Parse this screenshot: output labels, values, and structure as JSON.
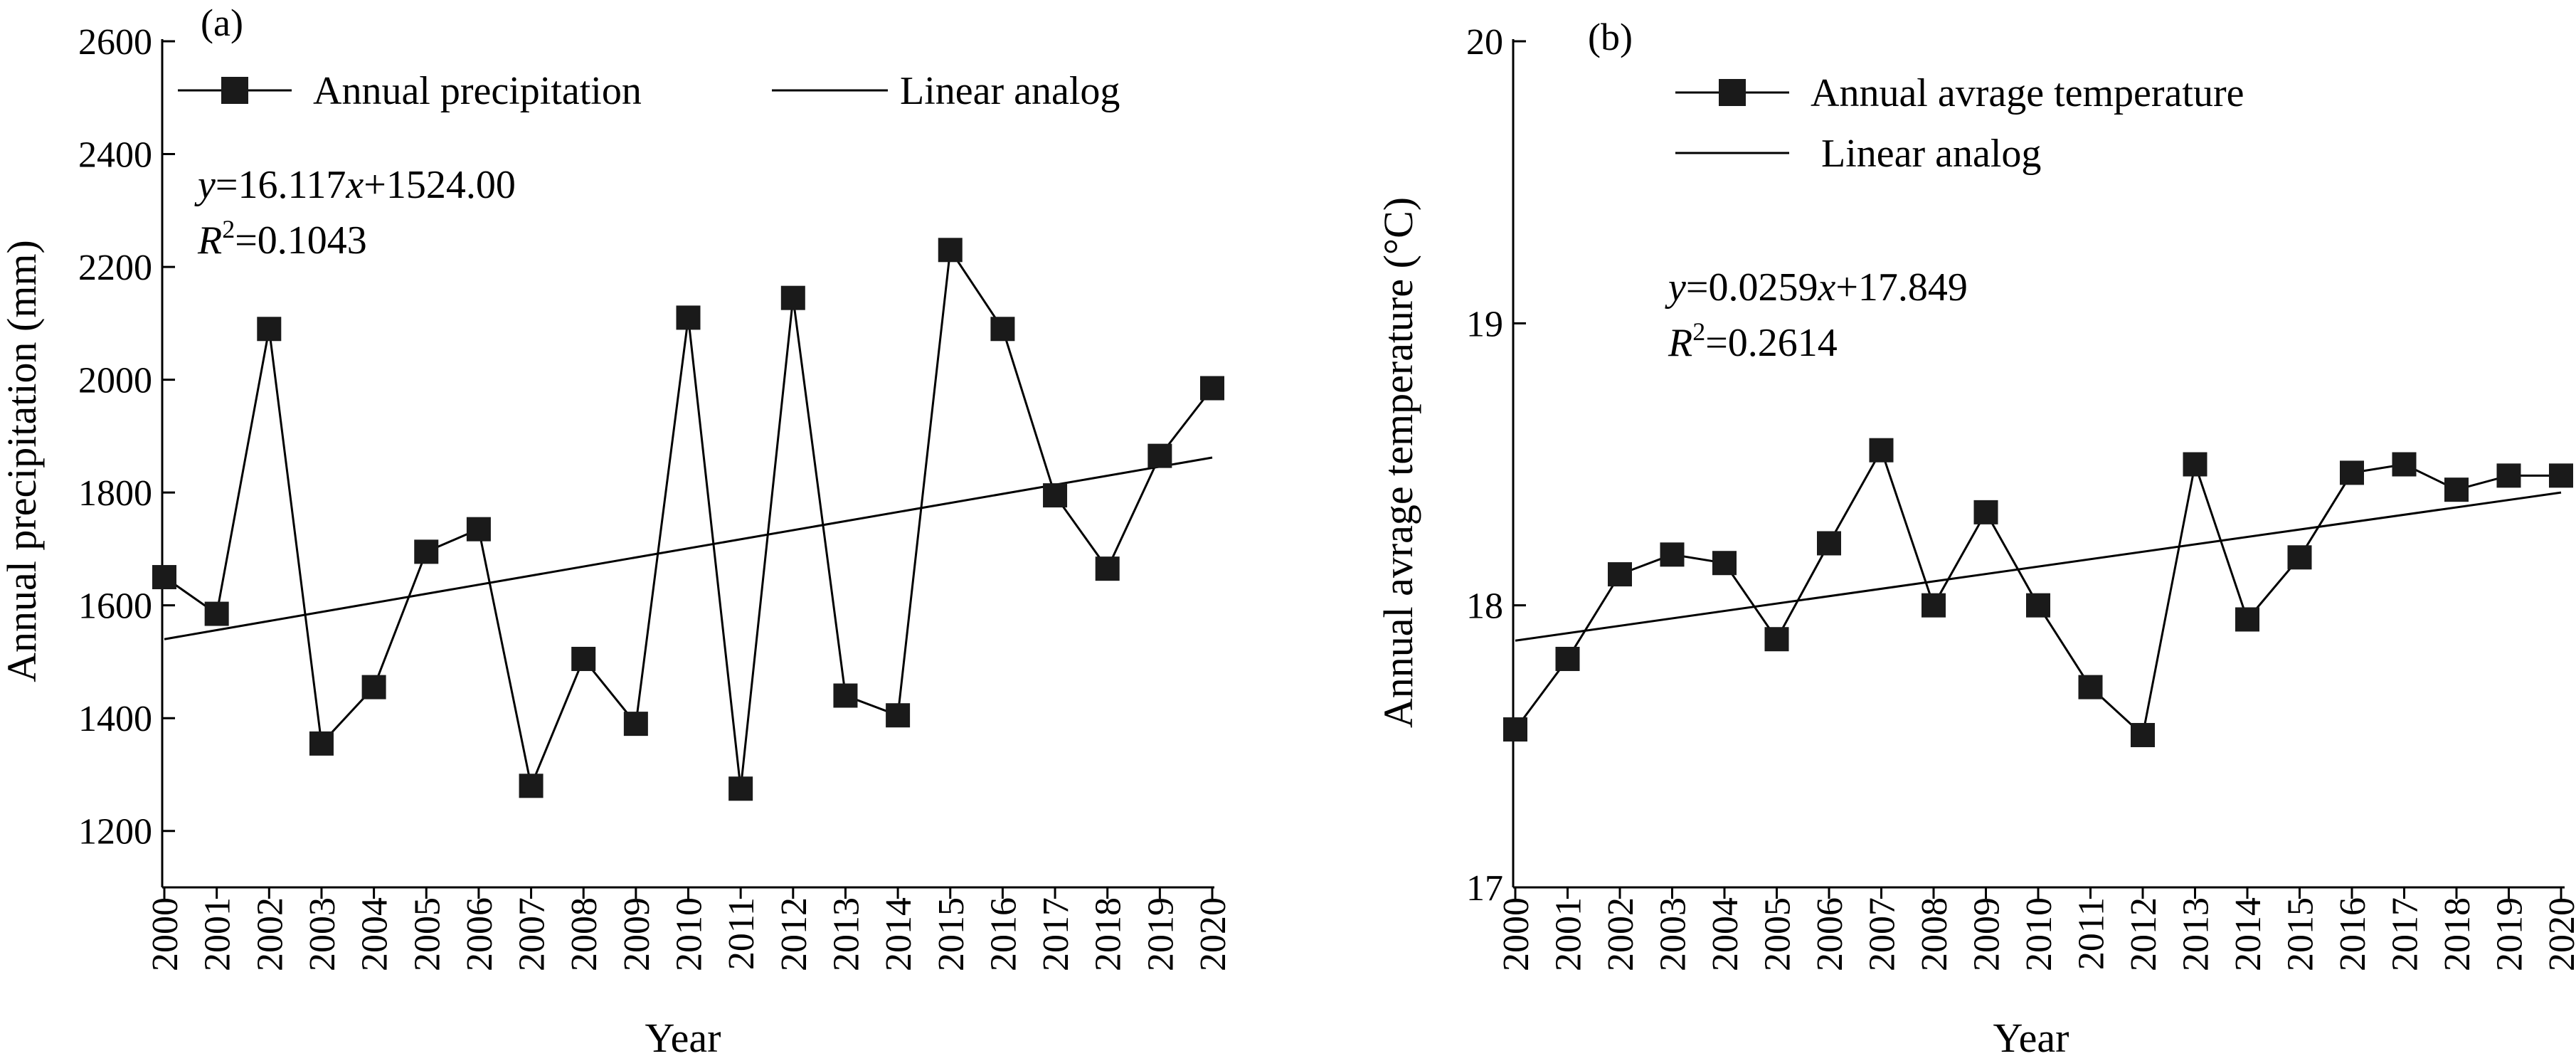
{
  "chart_data": [
    {
      "type": "line",
      "panel_label": "(a)",
      "x": [
        "2000",
        "2001",
        "2002",
        "2003",
        "2004",
        "2005",
        "2006",
        "2007",
        "2008",
        "2009",
        "2010",
        "2011",
        "2012",
        "2013",
        "2014",
        "2015",
        "2016",
        "2017",
        "2018",
        "2019",
        "2020"
      ],
      "xlabel": "Year",
      "ylabel": "Annual precipitation (mm)",
      "ylim": [
        1100,
        2600
      ],
      "yticks": [
        1200,
        1400,
        1600,
        1800,
        2000,
        2200,
        2400,
        2600
      ],
      "series": [
        {
          "name": "Annual precipitation",
          "marker": "square",
          "values": [
            1650,
            1585,
            2090,
            1355,
            1455,
            1695,
            1735,
            1280,
            1505,
            1390,
            2110,
            1275,
            2145,
            1440,
            1405,
            2230,
            2090,
            1795,
            1665,
            1865,
            1985
          ]
        },
        {
          "name": "Linear analog",
          "marker": "none",
          "line_points": [
            1540,
            1862
          ]
        }
      ],
      "annotation": {
        "eq_var": "y",
        "eq_mid": "=16.117",
        "eq_x": "x",
        "eq_end": "+1524.00",
        "r2_var": "R",
        "r2_sup": "2",
        "r2_end": "=0.1043"
      },
      "legend_placement": "top",
      "grid": false
    },
    {
      "type": "line",
      "panel_label": "(b)",
      "x": [
        "2000",
        "2001",
        "2002",
        "2003",
        "2004",
        "2005",
        "2006",
        "2007",
        "2008",
        "2009",
        "2010",
        "2011",
        "2012",
        "2013",
        "2014",
        "2015",
        "2016",
        "2017",
        "2018",
        "2019",
        "2020"
      ],
      "xlabel": "Year",
      "ylabel": "Annual avrage temperature (°C)",
      "ylim": [
        17,
        20
      ],
      "yticks": [
        17,
        18,
        19,
        20
      ],
      "series": [
        {
          "name": "Annual avrage temperature",
          "marker": "square",
          "values": [
            17.56,
            17.81,
            18.11,
            18.18,
            18.15,
            17.88,
            18.22,
            18.55,
            18.0,
            18.33,
            18.0,
            17.71,
            17.54,
            18.5,
            17.95,
            18.17,
            18.47,
            18.5,
            18.41,
            18.46,
            18.46
          ]
        },
        {
          "name": "Linear analog",
          "marker": "none",
          "line_points": [
            17.875,
            18.4
          ]
        }
      ],
      "annotation": {
        "eq_var": "y",
        "eq_mid": "=0.0259",
        "eq_x": "x",
        "eq_end": "+17.849",
        "r2_var": "R",
        "r2_sup": "2",
        "r2_end": "=0.2614"
      },
      "legend_placement": "top-left",
      "grid": false
    }
  ]
}
